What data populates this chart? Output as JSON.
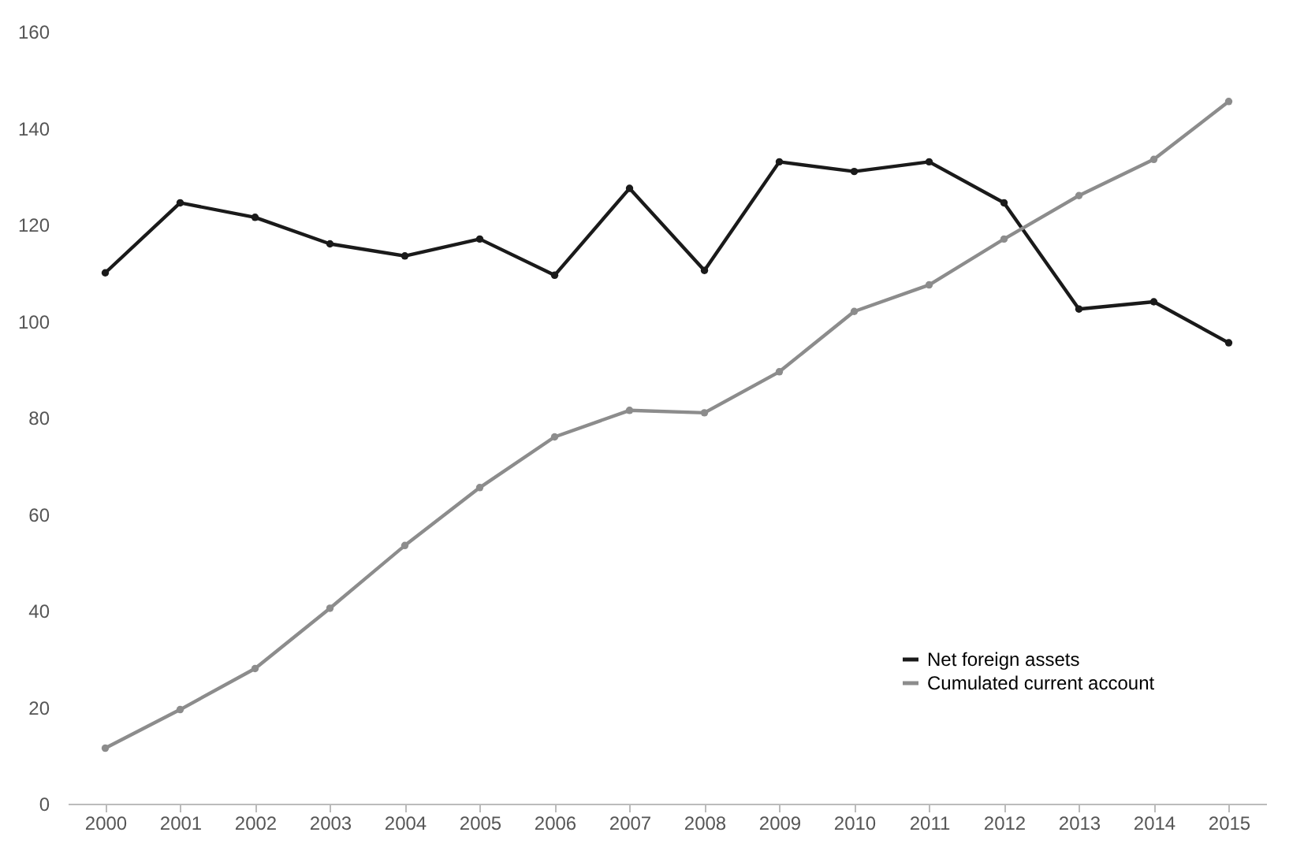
{
  "chart_data": {
    "type": "line",
    "categories": [
      "2000",
      "2001",
      "2002",
      "2003",
      "2004",
      "2005",
      "2006",
      "2007",
      "2008",
      "2009",
      "2010",
      "2011",
      "2012",
      "2013",
      "2014",
      "2015"
    ],
    "series": [
      {
        "name": "Net foreign assets",
        "color": "#1a1a1a",
        "values": [
          110,
          124.5,
          121.5,
          116,
          113.5,
          117,
          109.5,
          127.5,
          110.5,
          133,
          131,
          133,
          124.5,
          102.5,
          104,
          95.5
        ]
      },
      {
        "name": "Cumulated current account",
        "color": "#8c8c8c",
        "values": [
          11.5,
          19.5,
          28,
          40.5,
          53.5,
          65.5,
          76,
          81.5,
          81,
          89.5,
          102,
          107.5,
          117,
          126,
          133.5,
          145.5
        ]
      }
    ],
    "ylim": [
      0,
      160
    ],
    "yticks": [
      0,
      20,
      40,
      60,
      80,
      100,
      120,
      140,
      160
    ],
    "grid": false,
    "legend": "bottom right",
    "marker": "circle",
    "line_style": "solid"
  }
}
